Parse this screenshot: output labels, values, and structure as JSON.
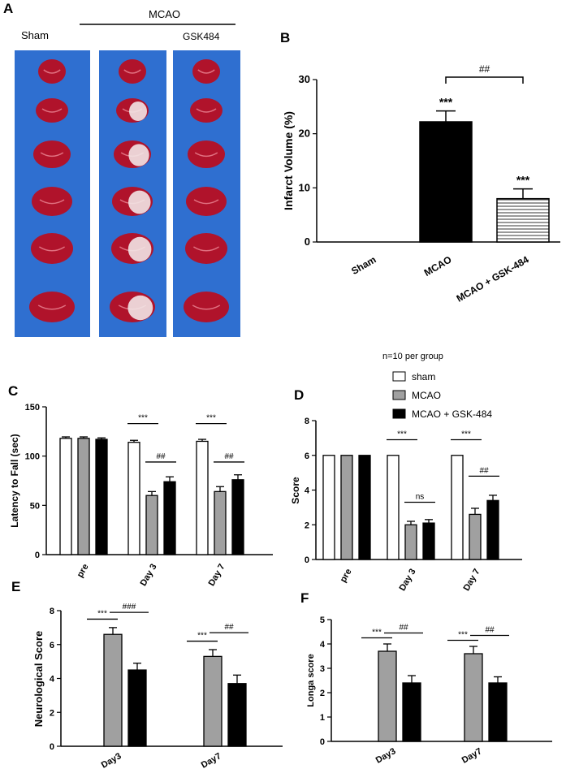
{
  "panel_letters": {
    "a": "A",
    "b": "B",
    "c": "C",
    "d": "D",
    "e": "E",
    "f": "F"
  },
  "panel_a": {
    "sham_label": "Sham",
    "mcao_label": "MCAO",
    "gsk_label": "GSK484",
    "colors": {
      "tray": "#2f6fd0",
      "tissue": "#b0132b",
      "infarct": "#f2e6e6"
    }
  },
  "legend": {
    "note": "n=10 per group",
    "items": [
      {
        "label": "sham",
        "color": "#ffffff"
      },
      {
        "label": "MCAO",
        "color": "#a0a0a0"
      },
      {
        "label": "MCAO + GSK-484",
        "color": "#000000"
      }
    ]
  },
  "chart_data": [
    {
      "id": "B",
      "type": "bar",
      "title": "",
      "ylabel": "Infarct Volume (%)",
      "ylim": [
        0,
        30
      ],
      "yticks": [
        0,
        10,
        20,
        30
      ],
      "categories": [
        "Sham",
        "MCAO",
        "MCAO + GSK-484"
      ],
      "values": [
        0,
        22.2,
        8.0
      ],
      "errors": [
        0,
        2.0,
        1.8
      ],
      "fills": [
        "#ffffff",
        "#000000",
        "stripes"
      ],
      "stars": [
        "",
        "***",
        "***"
      ],
      "comparisons": [
        {
          "from": 1,
          "to": 2,
          "label": "##"
        }
      ]
    },
    {
      "id": "C",
      "type": "bar",
      "ylabel": "Latency to Fall (sec)",
      "ylim": [
        0,
        150
      ],
      "yticks": [
        0,
        50,
        100,
        150
      ],
      "categories": [
        "pre",
        "Day 3",
        "Day 7"
      ],
      "series": [
        {
          "values": [
            118,
            114,
            115
          ],
          "errors": [
            1.5,
            2,
            2
          ],
          "color": "#ffffff"
        },
        {
          "values": [
            118,
            60,
            64
          ],
          "errors": [
            1.5,
            4,
            5
          ],
          "color": "#a0a0a0"
        },
        {
          "values": [
            117,
            74,
            76
          ],
          "errors": [
            1.5,
            5,
            5
          ],
          "color": "#000000"
        }
      ],
      "comparisons": [
        {
          "group": 1,
          "from": 0,
          "to": 1,
          "label": "***",
          "y": 133
        },
        {
          "group": 1,
          "from": 1,
          "to": 2,
          "label": "##",
          "y": 94
        },
        {
          "group": 2,
          "from": 0,
          "to": 1,
          "label": "***",
          "y": 133
        },
        {
          "group": 2,
          "from": 1,
          "to": 2,
          "label": "##",
          "y": 94
        }
      ]
    },
    {
      "id": "D",
      "type": "bar",
      "ylabel": "Score",
      "ylim": [
        0,
        8
      ],
      "yticks": [
        0,
        2,
        4,
        6,
        8
      ],
      "categories": [
        "pre",
        "Day 3",
        "Day 7"
      ],
      "series": [
        {
          "values": [
            6,
            6,
            6
          ],
          "errors": [
            0,
            0,
            0
          ],
          "color": "#ffffff"
        },
        {
          "values": [
            6,
            2.0,
            2.6
          ],
          "errors": [
            0,
            0.2,
            0.35
          ],
          "color": "#a0a0a0"
        },
        {
          "values": [
            6,
            2.1,
            3.4
          ],
          "errors": [
            0,
            0.2,
            0.3
          ],
          "color": "#000000"
        }
      ],
      "comparisons": [
        {
          "group": 1,
          "from": 0,
          "to": 1,
          "label": "***",
          "y": 6.9
        },
        {
          "group": 1,
          "from": 1,
          "to": 2,
          "label": "ns",
          "y": 3.3
        },
        {
          "group": 2,
          "from": 0,
          "to": 1,
          "label": "***",
          "y": 6.9
        },
        {
          "group": 2,
          "from": 1,
          "to": 2,
          "label": "##",
          "y": 4.8
        }
      ]
    },
    {
      "id": "E",
      "type": "bar",
      "ylabel": "Neurological Score",
      "ylim": [
        0,
        8
      ],
      "yticks": [
        0,
        2,
        4,
        6,
        8
      ],
      "categories": [
        "Day3",
        "Day7"
      ],
      "series": [
        {
          "values": [
            0,
            0
          ],
          "errors": [
            0,
            0
          ],
          "color": "#ffffff"
        },
        {
          "values": [
            6.6,
            5.3
          ],
          "errors": [
            0.4,
            0.4
          ],
          "color": "#a0a0a0"
        },
        {
          "values": [
            4.5,
            3.7
          ],
          "errors": [
            0.4,
            0.5
          ],
          "color": "#000000"
        }
      ],
      "comparisons": [
        {
          "group": 0,
          "from": 0,
          "to": 1,
          "label": "***",
          "y": 7.5
        },
        {
          "group": 0,
          "from": 1,
          "to": 2,
          "label": "###",
          "y": 7.9
        },
        {
          "group": 1,
          "from": 0,
          "to": 1,
          "label": "***",
          "y": 6.2
        },
        {
          "group": 1,
          "from": 1,
          "to": 2,
          "label": "##",
          "y": 6.7
        }
      ]
    },
    {
      "id": "F",
      "type": "bar",
      "ylabel": "Longa score",
      "ylim": [
        0,
        5
      ],
      "yticks": [
        0,
        1,
        2,
        3,
        4,
        5
      ],
      "categories": [
        "Day3",
        "Day7"
      ],
      "series": [
        {
          "values": [
            0,
            0
          ],
          "errors": [
            0,
            0
          ],
          "color": "#ffffff"
        },
        {
          "values": [
            3.7,
            3.6
          ],
          "errors": [
            0.3,
            0.3
          ],
          "color": "#a0a0a0"
        },
        {
          "values": [
            2.4,
            2.4
          ],
          "errors": [
            0.3,
            0.25
          ],
          "color": "#000000"
        }
      ],
      "comparisons": [
        {
          "group": 0,
          "from": 0,
          "to": 1,
          "label": "***",
          "y": 4.25
        },
        {
          "group": 0,
          "from": 1,
          "to": 2,
          "label": "##",
          "y": 4.45
        },
        {
          "group": 1,
          "from": 0,
          "to": 1,
          "label": "***",
          "y": 4.15
        },
        {
          "group": 1,
          "from": 1,
          "to": 2,
          "label": "##",
          "y": 4.35
        }
      ]
    }
  ]
}
